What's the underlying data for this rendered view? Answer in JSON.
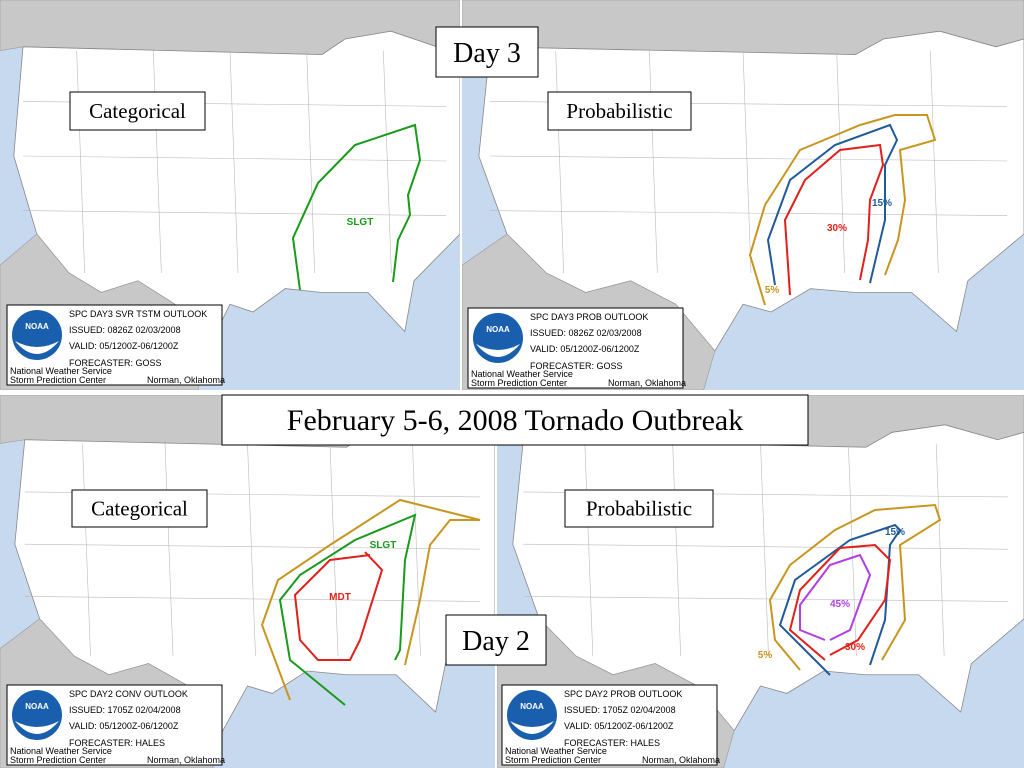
{
  "title": "February 5-6, 2008 Tornado Outbreak",
  "day_labels": [
    "Day 3",
    "Day 2"
  ],
  "panels": [
    {
      "label": "Categorical",
      "areas": [
        "SLGT"
      ],
      "info": {
        "logo": "NOAA",
        "product": "SPC DAY3 SVR TSTM OUTLOOK",
        "issued": "ISSUED: 0826Z 02/03/2008",
        "valid": "VALID: 05/1200Z-06/1200Z",
        "forecaster": "FORECASTER: GOSS",
        "office": "National Weather Service",
        "center": "Storm Prediction Center",
        "location": "Norman, Oklahoma"
      }
    },
    {
      "label": "Probabilistic",
      "areas": [
        "5%",
        "15%",
        "30%"
      ],
      "info": {
        "logo": "NOAA",
        "product": "SPC DAY3 PROB OUTLOOK",
        "issued": "ISSUED: 0826Z 02/03/2008",
        "valid": "VALID: 05/1200Z-06/1200Z",
        "forecaster": "FORECASTER: GOSS",
        "office": "National Weather Service",
        "center": "Storm Prediction Center",
        "location": "Norman, Oklahoma"
      }
    },
    {
      "label": "Categorical",
      "areas": [
        "SLGT",
        "MDT"
      ],
      "info": {
        "logo": "NOAA",
        "product": "SPC DAY2 CONV OUTLOOK",
        "issued": "ISSUED: 1705Z 02/04/2008",
        "valid": "VALID: 05/1200Z-06/1200Z",
        "forecaster": "FORECASTER: HALES",
        "office": "National Weather Service",
        "center": "Storm Prediction Center",
        "location": "Norman, Oklahoma"
      }
    },
    {
      "label": "Probabilistic",
      "areas": [
        "15%",
        "45%",
        "30%",
        "5%"
      ],
      "info": {
        "logo": "NOAA",
        "product": "SPC DAY2 PROB OUTLOOK",
        "issued": "ISSUED: 1705Z 02/04/2008",
        "valid": "VALID: 05/1200Z-06/1200Z",
        "forecaster": "FORECASTER: HALES",
        "office": "National Weather Service",
        "center": "Storm Prediction Center",
        "location": "Norman, Oklahoma"
      }
    }
  ]
}
